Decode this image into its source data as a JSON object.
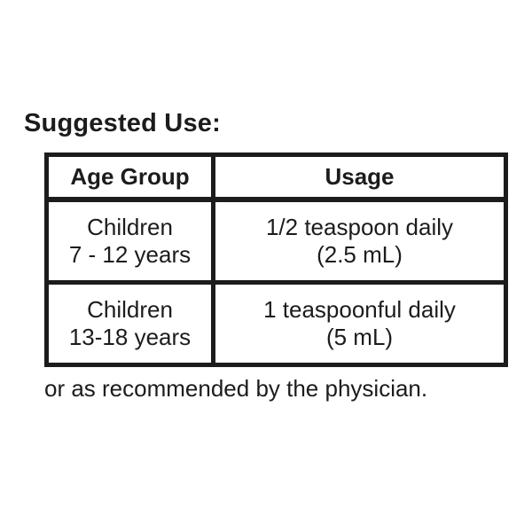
{
  "title": {
    "label": "Suggested Use:"
  },
  "table": {
    "headers": {
      "age_group": "Age Group",
      "usage": "Usage"
    },
    "rows": [
      {
        "age_line1": "Children",
        "age_line2": "7 - 12 years",
        "usage_line1": "1/2 teaspoon daily",
        "usage_line2": "(2.5 mL)"
      },
      {
        "age_line1": "Children",
        "age_line2": "13-18 years",
        "usage_line1": "1 teaspoonful daily",
        "usage_line2": "(5 mL)"
      }
    ]
  },
  "footnote": {
    "label": "or as recommended by the physician."
  },
  "colors": {
    "text": "#1c1c1c",
    "border": "#1c1c1c",
    "background": "#ffffff"
  }
}
